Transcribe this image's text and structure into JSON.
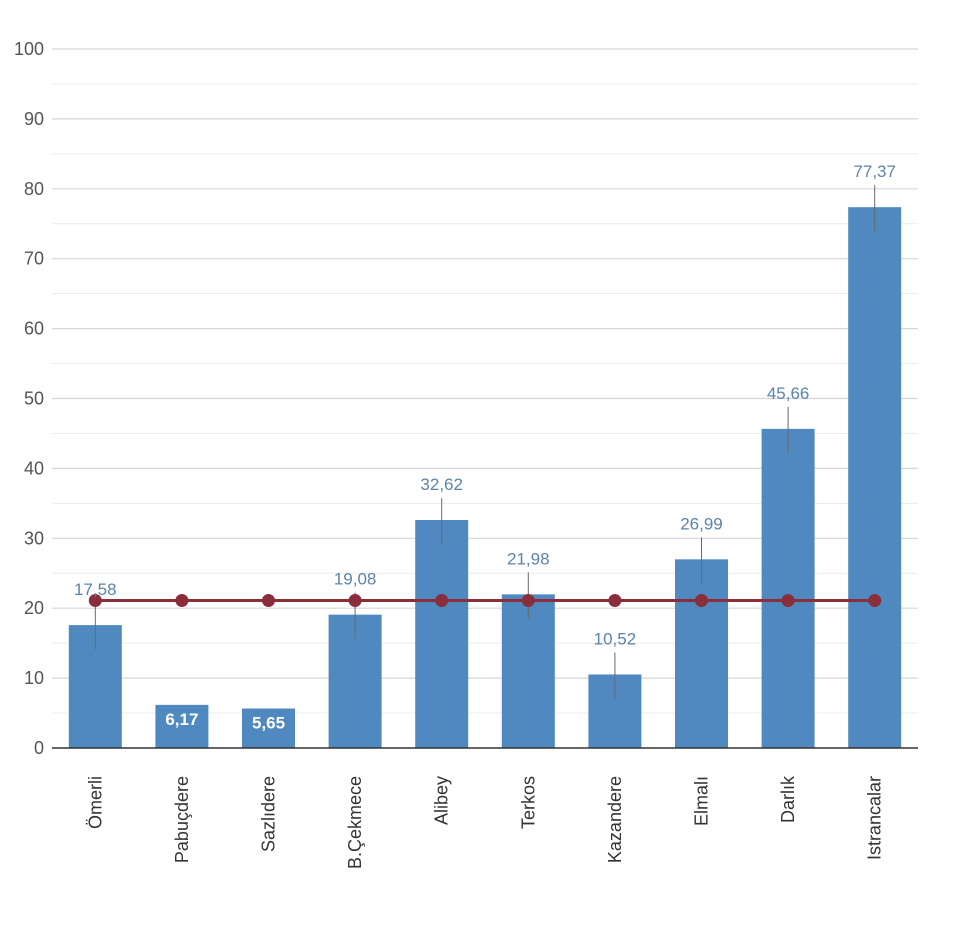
{
  "chart_data": {
    "type": "bar",
    "categories": [
      "Ömerli",
      "Pabuçdere",
      "Sazlıdere",
      "B.Çekmece",
      "Alibey",
      "Terkos",
      "Kazandere",
      "Elmalı",
      "Darlık",
      "Istrancalar"
    ],
    "series": [
      {
        "type": "bar",
        "values": [
          17.58,
          6.17,
          5.65,
          19.08,
          32.62,
          21.98,
          10.52,
          26.99,
          45.66,
          77.37
        ],
        "labels": [
          "17,58",
          "6,17",
          "5,65",
          "19,08",
          "32,62",
          "21,98",
          "10,52",
          "26,99",
          "45,66",
          "77,37"
        ],
        "color": "#4f89bf"
      },
      {
        "type": "line",
        "values": [
          21.1,
          21.1,
          21.1,
          21.1,
          21.1,
          21.1,
          21.1,
          21.1,
          21.1,
          21.1
        ],
        "color": "#8b2e3c"
      }
    ],
    "ylim": [
      0,
      100
    ],
    "yticks": [
      "0",
      "10",
      "20",
      "30",
      "40",
      "50",
      "60",
      "70",
      "80",
      "90",
      "100"
    ],
    "minor_grid": true,
    "grid": true,
    "title": "",
    "xlabel": "",
    "ylabel": "",
    "colors": {
      "grid_major": "#d6d6d6",
      "grid_minor": "#ececec",
      "axis": "#333333"
    }
  }
}
